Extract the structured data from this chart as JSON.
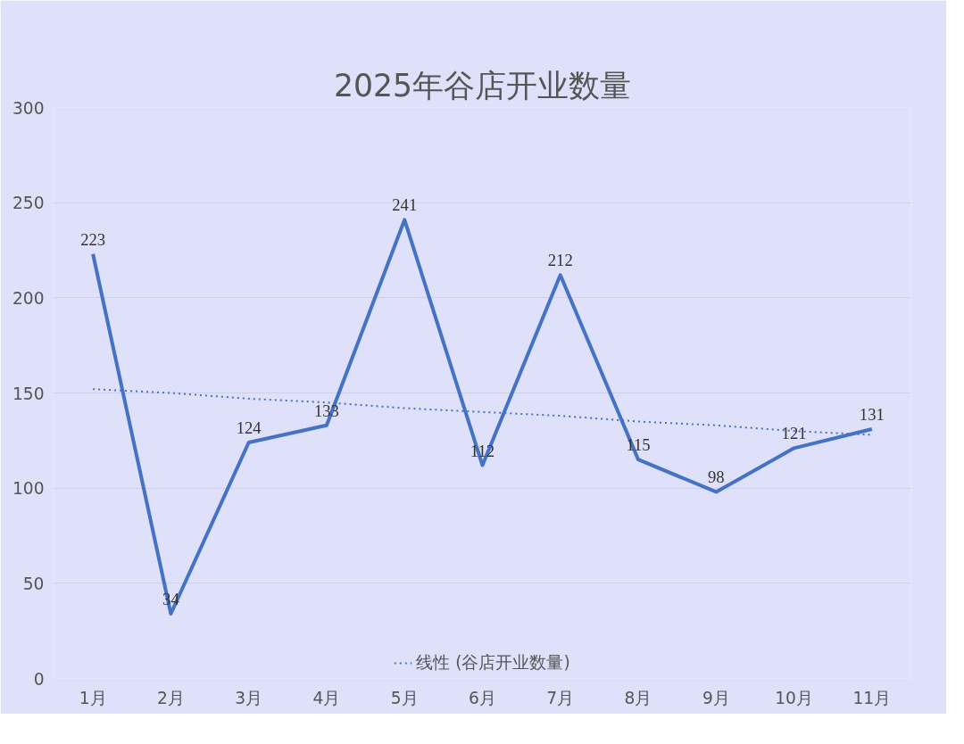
{
  "chart_data": {
    "type": "line",
    "title": "2025年谷店开业数量",
    "categories": [
      "1月",
      "2月",
      "3月",
      "4月",
      "5月",
      "6月",
      "7月",
      "8月",
      "9月",
      "10月",
      "11月"
    ],
    "series": [
      {
        "color": "#4472c4",
        "values": [
          223,
          34,
          124,
          133,
          241,
          112,
          212,
          115,
          98,
          121,
          131
        ],
        "value_labels": [
          "223",
          "34",
          "124",
          "133",
          "241",
          "112",
          "212",
          "115",
          "98",
          "121",
          "131"
        ]
      },
      {
        "name": "线性 (谷店开业数量)",
        "color": "#4472c4",
        "line_style": "dotted",
        "values": [
          152,
          150,
          147,
          145,
          142,
          140,
          138,
          135,
          133,
          130,
          128
        ]
      }
    ],
    "ylim": [
      0,
      300
    ],
    "yticks": [
      0,
      50,
      100,
      150,
      200,
      250,
      300
    ],
    "grid": "y",
    "legend": "bottom",
    "marker": "none"
  }
}
